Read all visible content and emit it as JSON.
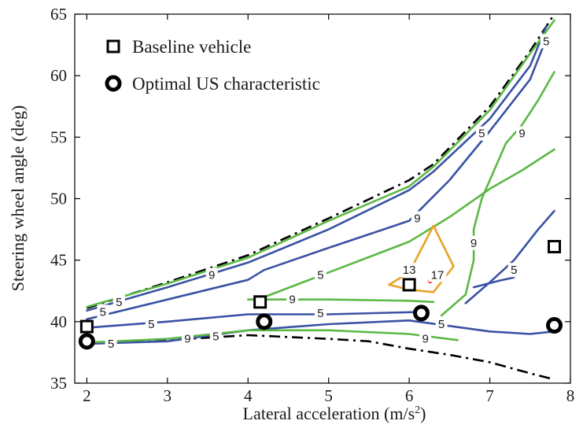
{
  "chart_data": {
    "type": "line",
    "title": "",
    "xlabel": "Lateral acceleration (m/s",
    "xlabel_sup": "2",
    "xlabel_close": ")",
    "ylabel": "Steering wheel angle (deg)",
    "xlim": [
      1.85,
      8.0
    ],
    "ylim": [
      35,
      65
    ],
    "x_ticks": [
      2,
      3,
      4,
      5,
      6,
      7,
      8
    ],
    "y_ticks": [
      35,
      40,
      45,
      50,
      55,
      60,
      65
    ],
    "grid": false,
    "legend": {
      "placement": "top-left",
      "entries": [
        "Baseline vehicle",
        "Optimal US characteristic"
      ]
    },
    "colors": {
      "level_5": "#3a52a4",
      "level_9": "#5cb845",
      "level_13": "#e8a326",
      "level_17": "#e8202a",
      "bounds": "#000000"
    },
    "boundaries": [
      {
        "x": [
          2.0,
          3.0,
          4.0,
          5.0,
          6.0,
          6.3,
          7.0,
          7.5,
          7.8
        ],
        "y": [
          41.1,
          43.2,
          45.4,
          48.4,
          51.5,
          52.8,
          57.5,
          62.0,
          65.0
        ]
      },
      {
        "x": [
          2.0,
          3.0,
          4.0,
          5.0,
          5.5,
          6.0,
          6.5,
          7.0,
          7.5,
          7.8
        ],
        "y": [
          38.2,
          38.5,
          38.9,
          38.6,
          38.4,
          37.8,
          37.3,
          36.7,
          35.8,
          35.3
        ]
      }
    ],
    "series": [
      {
        "level": 5,
        "x": [
          2.0,
          3.0,
          4.0,
          5.0,
          6.0,
          6.3,
          7.0,
          7.5,
          7.7
        ],
        "y": [
          40.9,
          42.8,
          44.8,
          47.5,
          50.7,
          52.2,
          56.5,
          60.8,
          64.0
        ]
      },
      {
        "level": 5,
        "x": [
          2.0,
          3.0,
          4.0,
          4.2,
          5.0,
          6.0,
          6.5,
          7.0,
          7.5,
          7.7
        ],
        "y": [
          40.2,
          41.8,
          43.4,
          44.2,
          46.0,
          48.2,
          51.5,
          55.5,
          59.7,
          63.0
        ]
      },
      {
        "level": 5,
        "x": [
          2.0,
          3.0,
          4.0,
          5.0,
          6.2
        ],
        "y": [
          39.5,
          40.0,
          40.6,
          40.6,
          40.8
        ]
      },
      {
        "level": 5,
        "x": [
          2.0,
          3.0,
          4.0,
          5.0,
          6.0,
          7.0,
          7.5,
          7.8
        ],
        "y": [
          38.2,
          38.4,
          39.3,
          39.8,
          40.1,
          39.2,
          39.0,
          39.2
        ]
      },
      {
        "level": 5,
        "x": [
          6.7,
          7.0,
          7.3,
          7.6,
          7.8
        ],
        "y": [
          41.5,
          43.2,
          45.0,
          47.5,
          49.0
        ]
      },
      {
        "level": 5,
        "x": [
          6.8,
          7.1,
          7.3
        ],
        "y": [
          42.8,
          43.3,
          43.6
        ]
      },
      {
        "level": 9,
        "x": [
          2.0,
          3.0,
          4.0,
          5.0,
          6.0,
          6.3,
          7.0,
          7.5,
          7.8
        ],
        "y": [
          41.2,
          43.1,
          45.2,
          48.2,
          51.0,
          52.6,
          57.2,
          61.8,
          64.5
        ]
      },
      {
        "level": 9,
        "x": [
          4.2,
          5.0,
          6.0,
          6.5,
          7.0,
          7.4,
          7.8
        ],
        "y": [
          42.0,
          44.0,
          46.5,
          48.5,
          50.8,
          52.3,
          54.0
        ]
      },
      {
        "level": 9,
        "x": [
          4.0,
          5.0,
          6.0,
          6.3
        ],
        "y": [
          41.8,
          41.8,
          41.7,
          41.6
        ]
      },
      {
        "level": 9,
        "x": [
          2.0,
          3.0,
          4.0,
          5.0,
          6.0,
          6.6
        ],
        "y": [
          38.3,
          38.6,
          39.3,
          39.3,
          39.0,
          38.5
        ]
      },
      {
        "level": 9,
        "x": [
          6.4,
          6.7,
          6.8,
          6.8,
          6.9,
          7.1,
          7.2,
          7.4,
          7.6,
          7.8
        ],
        "y": [
          40.5,
          42.2,
          45.0,
          47.5,
          50.0,
          53.0,
          54.5,
          56.0,
          58.0,
          60.3
        ]
      },
      {
        "level": 13,
        "x": [
          5.75,
          6.0,
          6.3,
          6.55,
          6.3,
          6.0,
          5.75
        ],
        "y": [
          43.0,
          44.0,
          47.8,
          44.5,
          42.4,
          42.6,
          43.0
        ]
      }
    ],
    "points": [
      {
        "level": 17,
        "x": 6.26,
        "y": 43.3
      }
    ],
    "contour_labels": [
      {
        "text": "5",
        "x": 2.4,
        "y": 41.6,
        "level": 5
      },
      {
        "text": "5",
        "x": 2.2,
        "y": 40.8,
        "level": 5
      },
      {
        "text": "5",
        "x": 2.8,
        "y": 39.8,
        "level": 5
      },
      {
        "text": "5",
        "x": 2.3,
        "y": 38.2,
        "level": 5
      },
      {
        "text": "5",
        "x": 3.6,
        "y": 38.8,
        "level": 5
      },
      {
        "text": "5",
        "x": 4.9,
        "y": 43.8,
        "level": 5
      },
      {
        "text": "5",
        "x": 4.9,
        "y": 40.7,
        "level": 5
      },
      {
        "text": "5",
        "x": 6.4,
        "y": 39.8,
        "level": 5
      },
      {
        "text": "5",
        "x": 6.9,
        "y": 55.3,
        "level": 5
      },
      {
        "text": "5",
        "x": 7.7,
        "y": 62.8,
        "level": 5
      },
      {
        "text": "5",
        "x": 7.3,
        "y": 44.2,
        "level": 5
      },
      {
        "text": "9",
        "x": 3.55,
        "y": 43.8,
        "level": 9
      },
      {
        "text": "9",
        "x": 3.25,
        "y": 38.6,
        "level": 9
      },
      {
        "text": "9",
        "x": 4.55,
        "y": 41.8,
        "level": 9
      },
      {
        "text": "9",
        "x": 6.1,
        "y": 48.4,
        "level": 9
      },
      {
        "text": "9",
        "x": 6.2,
        "y": 38.6,
        "level": 9
      },
      {
        "text": "9",
        "x": 6.8,
        "y": 46.4,
        "level": 9
      },
      {
        "text": "9",
        "x": 7.4,
        "y": 55.3,
        "level": 9
      },
      {
        "text": "13",
        "x": 6.0,
        "y": 44.2,
        "level": 13
      },
      {
        "text": "17",
        "x": 6.35,
        "y": 43.8,
        "level": 17
      }
    ],
    "baseline_vehicle": [
      {
        "x": 2.0,
        "y": 39.6
      },
      {
        "x": 4.15,
        "y": 41.6
      },
      {
        "x": 6.0,
        "y": 43.0
      },
      {
        "x": 7.8,
        "y": 46.1
      }
    ],
    "optimal_us": [
      {
        "x": 2.0,
        "y": 38.4
      },
      {
        "x": 4.2,
        "y": 40.0
      },
      {
        "x": 6.15,
        "y": 40.7
      },
      {
        "x": 7.8,
        "y": 39.7
      }
    ]
  }
}
